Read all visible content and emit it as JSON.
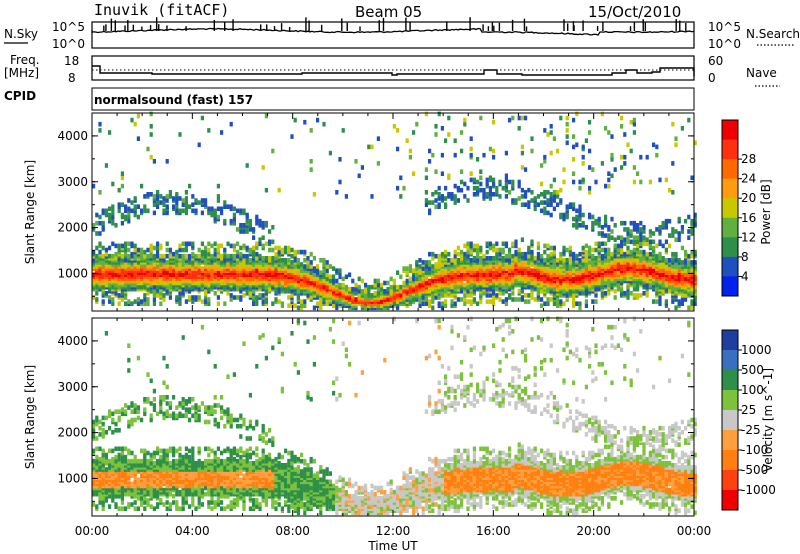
{
  "header": {
    "station": "Inuvik (fitACF)",
    "beam": "Beam 05",
    "date": "15/Oct/2010",
    "mode": "normalsound (fast) 157"
  },
  "strip_labels": {
    "nsky": "N.Sky",
    "nsky_top": "10^5",
    "nsky_bottom": "10^0",
    "nsearch": "N.Search",
    "nsearch_top": "10^5",
    "nsearch_bottom": "10^0",
    "freq": "Freq.",
    "freq_unit": "[MHz]",
    "freq_top": "18",
    "freq_bottom": "8",
    "cpid": "CPID",
    "nave": "Nave",
    "nave_top": "60",
    "nave_bottom": "0"
  },
  "colors": {
    "power": [
      "#0022ee",
      "#2050c0",
      "#2e8f4a",
      "#60b040",
      "#c8c800",
      "#ff9b10",
      "#ff6a00",
      "#ff3010",
      "#ee0000"
    ],
    "velocity": [
      "#1d3fa0",
      "#3a6fbf",
      "#2e8f4a",
      "#7cc23a",
      "#c8c8c8",
      "#ffa040",
      "#ff8010",
      "#ff4010",
      "#ee0000"
    ]
  },
  "chart_data": [
    {
      "type": "heatmap",
      "title": "",
      "xlabel": "",
      "ylabel": "Slant Range [km]",
      "x_ticks": [
        "00:00",
        "04:00",
        "08:00",
        "12:00",
        "16:00",
        "20:00",
        "00:00"
      ],
      "y_ticks": [
        "1000",
        "2000",
        "3000",
        "4000"
      ],
      "ylim": [
        180,
        4500
      ],
      "colorbar": {
        "label": "Power [dB]",
        "ticks": [
          "4",
          "8",
          "12",
          "16",
          "20",
          "24",
          "28"
        ]
      }
    },
    {
      "type": "heatmap",
      "title": "",
      "xlabel": "Time UT",
      "ylabel": "Slant Range [km]",
      "x_ticks": [
        "00:00",
        "04:00",
        "08:00",
        "12:00",
        "16:00",
        "20:00",
        "00:00"
      ],
      "y_ticks": [
        "1000",
        "2000",
        "3000",
        "4000"
      ],
      "ylim": [
        180,
        4500
      ],
      "colorbar": {
        "label": "Velocity [m s^-1]",
        "ticks": [
          "1000",
          "500",
          "100",
          "25",
          "-25",
          "-100",
          "-500",
          "-1000"
        ]
      }
    }
  ]
}
